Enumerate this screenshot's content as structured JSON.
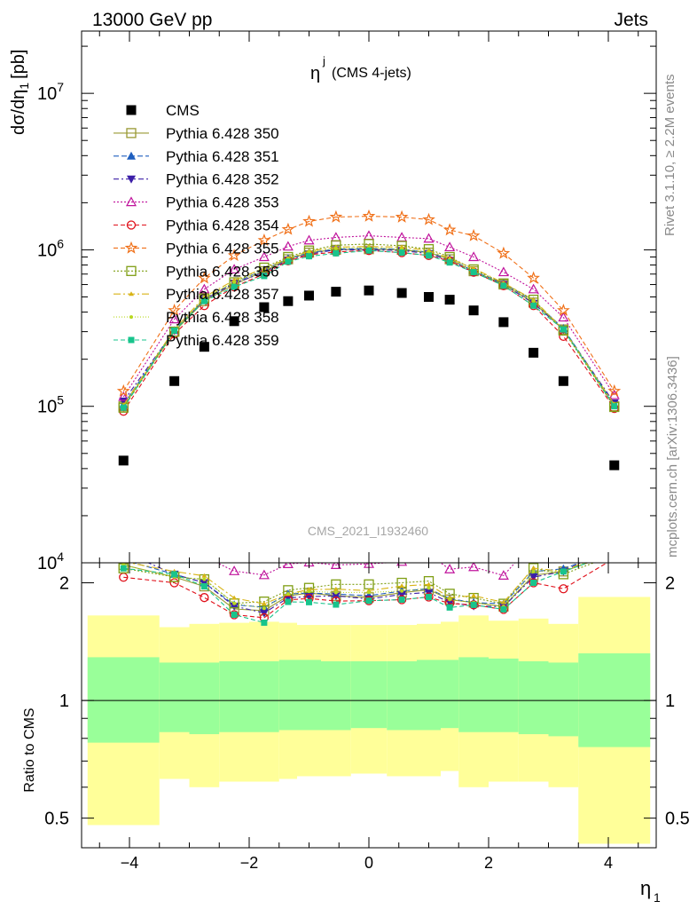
{
  "header": {
    "left": "13000 GeV pp",
    "right": "Jets",
    "side_top": "Rivet 3.1.10, ≥ 2.2M events",
    "side_bottom": "mcplots.cern.ch [arXiv:1306.3436]"
  },
  "chart_data": {
    "type": "scatter",
    "title_main": "η",
    "title_sup": "j",
    "title_rest": "(CMS 4-jets)",
    "watermark": "CMS_2021_I1932460",
    "ylabel_main": "dσ/dη",
    "ylabel_sub": "1",
    "ylabel_unit": "[pb]",
    "xlabel_main": "η",
    "xlabel_sub": "1",
    "ratio_ylabel": "Ratio to CMS",
    "xlim": [
      -4.8,
      4.8
    ],
    "ylim": [
      10000,
      25000000
    ],
    "yscale": "log",
    "ratio_ylim": [
      0.42,
      2.25
    ],
    "ratio_yscale": "log",
    "x_ticks": [
      "−4",
      "−2",
      "0",
      "2",
      "4"
    ],
    "x_tick_values": [
      -4,
      -2,
      0,
      2,
      4
    ],
    "y_ticks_base": "10",
    "y_tick_exps": [
      "4",
      "5",
      "6",
      "7"
    ],
    "y_tick_values": [
      10000,
      100000,
      1000000,
      10000000
    ],
    "ratio_ticks": [
      "0.5",
      "1",
      "2"
    ],
    "ratio_tick_values": [
      0.5,
      1,
      2
    ],
    "bin_edges": [
      -4.7,
      -3.5,
      -3.0,
      -2.5,
      -2.0,
      -1.5,
      -1.2,
      -0.8,
      -0.3,
      0.3,
      0.8,
      1.2,
      1.5,
      2.0,
      2.5,
      3.0,
      3.5,
      4.7
    ],
    "x": [
      -4.1,
      -3.25,
      -2.75,
      -2.25,
      -1.75,
      -1.35,
      -1.0,
      -0.55,
      0.0,
      0.55,
      1.0,
      1.35,
      1.75,
      2.25,
      2.75,
      3.25,
      4.1
    ],
    "band_stat_lo": [
      0.78,
      0.83,
      0.82,
      0.83,
      0.83,
      0.84,
      0.84,
      0.84,
      0.85,
      0.84,
      0.84,
      0.85,
      0.83,
      0.83,
      0.82,
      0.81,
      0.76
    ],
    "band_stat_hi": [
      1.29,
      1.25,
      1.25,
      1.26,
      1.26,
      1.27,
      1.27,
      1.26,
      1.26,
      1.26,
      1.27,
      1.27,
      1.29,
      1.28,
      1.26,
      1.25,
      1.32
    ],
    "band_tot_lo": [
      0.48,
      0.63,
      0.6,
      0.62,
      0.62,
      0.63,
      0.64,
      0.64,
      0.65,
      0.64,
      0.64,
      0.66,
      0.6,
      0.62,
      0.62,
      0.6,
      0.43
    ],
    "band_tot_hi": [
      1.65,
      1.54,
      1.57,
      1.58,
      1.59,
      1.58,
      1.56,
      1.56,
      1.56,
      1.56,
      1.57,
      1.59,
      1.65,
      1.6,
      1.62,
      1.57,
      1.84
    ],
    "data": {
      "name": "CMS",
      "color": "#000000",
      "values": [
        45000,
        145000,
        240000,
        350000,
        430000,
        470000,
        510000,
        540000,
        550000,
        530000,
        500000,
        480000,
        410000,
        345000,
        220000,
        145000,
        42000
      ]
    },
    "series": [
      {
        "name": "Pythia 6.428 350",
        "color": "#999933",
        "marker": "square-open",
        "dash": "",
        "values": [
          100000,
          300000,
          470000,
          600000,
          730000,
          870000,
          960000,
          1000000,
          1010000,
          1000000,
          960000,
          870000,
          730000,
          600000,
          460000,
          310000,
          100000
        ]
      },
      {
        "name": "Pythia 6.428 351",
        "color": "#1f5fbf",
        "marker": "triangle-up",
        "dash": "6,3",
        "values": [
          103000,
          305000,
          480000,
          615000,
          745000,
          880000,
          960000,
          1010000,
          1020000,
          1010000,
          965000,
          875000,
          730000,
          610000,
          470000,
          315000,
          102000
        ]
      },
      {
        "name": "Pythia 6.428 352",
        "color": "#3c1fa8",
        "marker": "triangle-down",
        "dash": "6,3,2,3",
        "values": [
          108000,
          305000,
          480000,
          610000,
          720000,
          860000,
          940000,
          1000000,
          1000000,
          990000,
          945000,
          855000,
          715000,
          600000,
          455000,
          310000,
          105000
        ]
      },
      {
        "name": "Pythia 6.428 353",
        "color": "#c0139c",
        "marker": "triangle-up-open",
        "dash": "2,2",
        "values": [
          115000,
          360000,
          560000,
          750000,
          900000,
          1050000,
          1150000,
          1200000,
          1230000,
          1200000,
          1180000,
          1040000,
          900000,
          720000,
          560000,
          370000,
          118000
        ]
      },
      {
        "name": "Pythia 6.428 354",
        "color": "#e0101a",
        "marker": "circle-open",
        "dash": "5,3",
        "values": [
          93000,
          290000,
          440000,
          580000,
          700000,
          850000,
          930000,
          970000,
          990000,
          960000,
          920000,
          850000,
          720000,
          590000,
          440000,
          280000,
          97000
        ]
      },
      {
        "name": "Pythia 6.428 355",
        "color": "#f07018",
        "marker": "star-open",
        "dash": "5,3",
        "values": [
          125000,
          410000,
          660000,
          920000,
          1150000,
          1350000,
          1520000,
          1620000,
          1640000,
          1620000,
          1560000,
          1340000,
          1230000,
          950000,
          660000,
          410000,
          125000
        ]
      },
      {
        "name": "Pythia 6.428 356",
        "color": "#7f9e14",
        "marker": "square-open",
        "dash": "2,2",
        "values": [
          98000,
          300000,
          490000,
          620000,
          770000,
          900000,
          990000,
          1070000,
          1090000,
          1060000,
          1010000,
          900000,
          750000,
          610000,
          480000,
          305000,
          99000
        ]
      },
      {
        "name": "Pythia 6.428 357",
        "color": "#d8b416",
        "marker": "tri-small",
        "dash": "8,3,2,3",
        "values": [
          102000,
          310000,
          500000,
          640000,
          760000,
          880000,
          980000,
          1040000,
          1050000,
          1040000,
          990000,
          880000,
          760000,
          615000,
          480000,
          310000,
          103000
        ]
      },
      {
        "name": "Pythia 6.428 358",
        "color": "#b8d820",
        "marker": "dot",
        "dash": "1,2",
        "values": [
          100000,
          300000,
          490000,
          620000,
          740000,
          880000,
          970000,
          1020000,
          1040000,
          1010000,
          970000,
          870000,
          730000,
          600000,
          470000,
          310000,
          101000
        ]
      },
      {
        "name": "Pythia 6.428 359",
        "color": "#18c48c",
        "marker": "square-filled",
        "dash": "5,3",
        "values": [
          98000,
          305000,
          470000,
          580000,
          680000,
          840000,
          910000,
          950000,
          990000,
          960000,
          920000,
          830000,
          720000,
          590000,
          440000,
          310000,
          100000
        ]
      }
    ]
  }
}
